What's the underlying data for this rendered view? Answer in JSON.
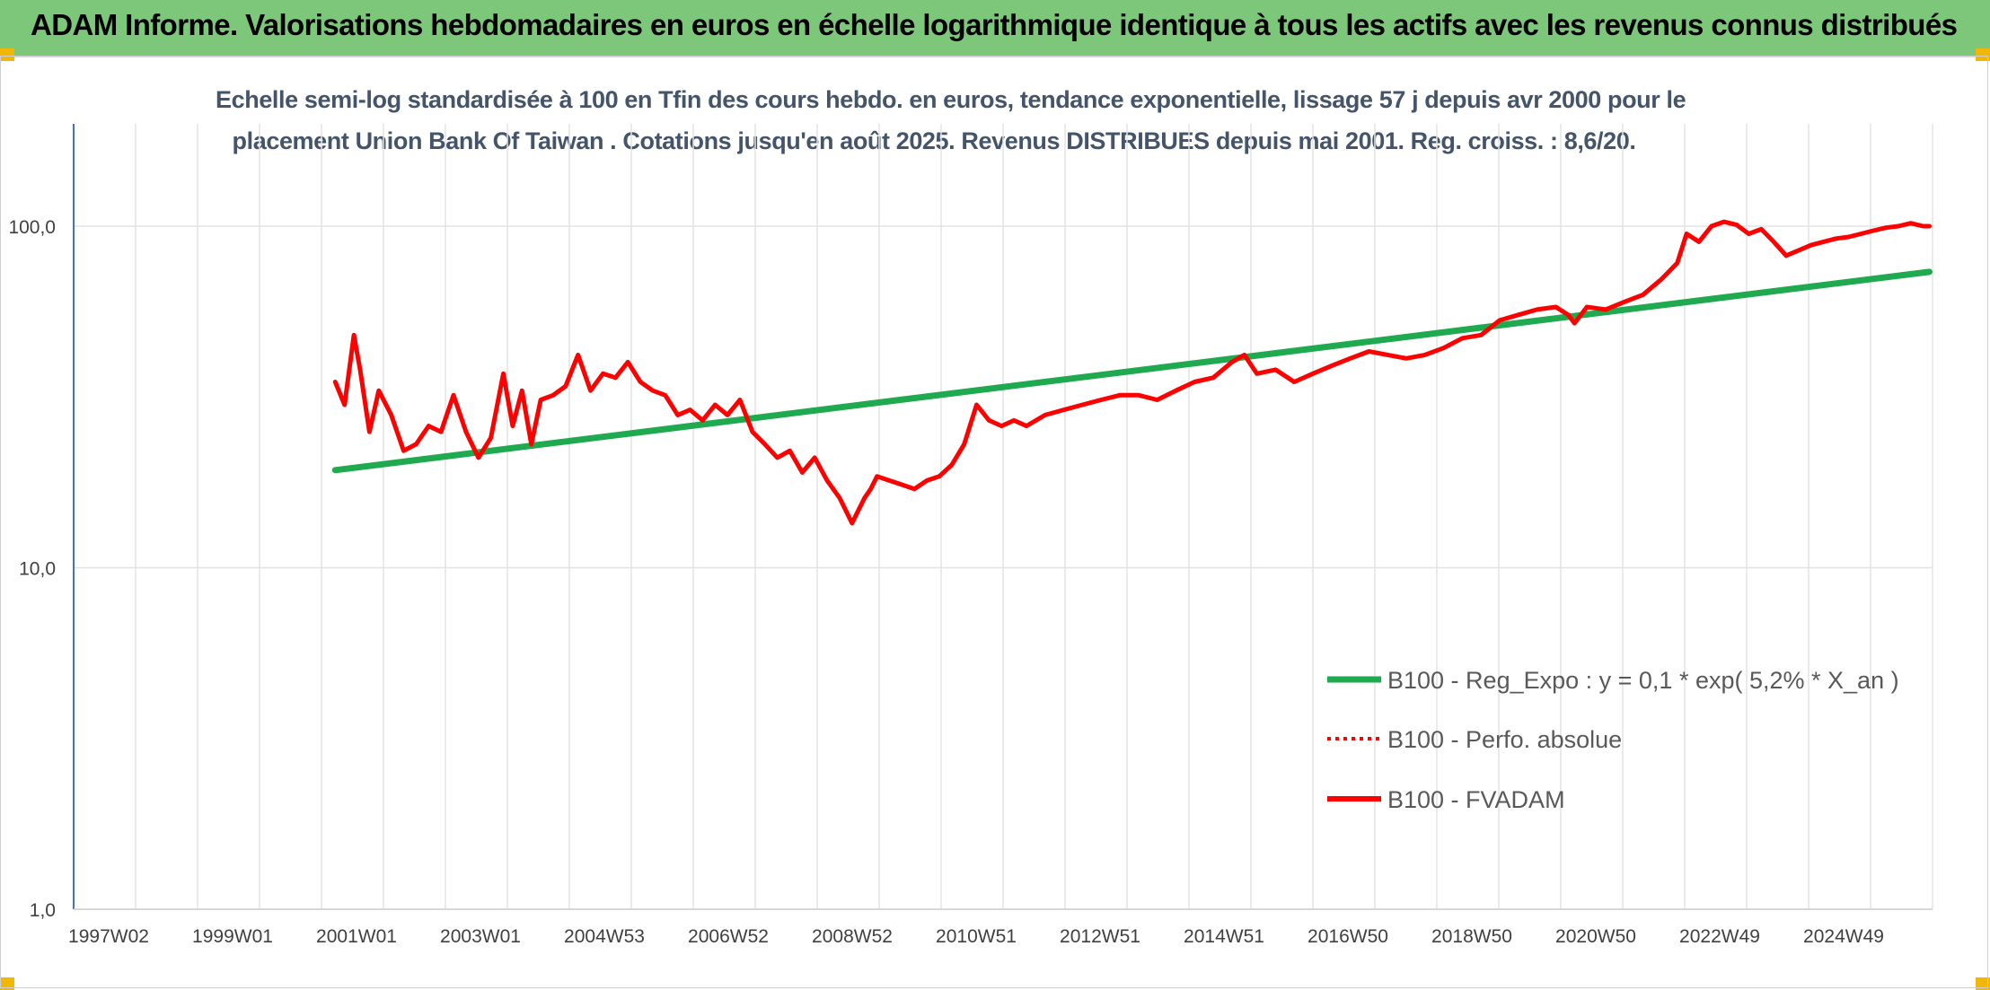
{
  "banner": {
    "title": "ADAM Informe. Valorisations hebdomadaires en euros en échelle logarithmique identique à tous les actifs avec les revenus connus distribués"
  },
  "colors": {
    "banner_bg": "#7dc77a",
    "accent_corner": "#f2b705",
    "regression": "#1faa4f",
    "fvadam": "#ff0000",
    "perf_absolue": "#ff0000",
    "grid": "#e3e3e3",
    "axis": "#4472c4"
  },
  "chart_data": {
    "type": "line",
    "title_line1": "Echelle semi-log standardisée à 100 en Tfin des cours hebdo. en euros, tendance exponentielle, lissage 57 j depuis avr 2000 pour le",
    "title_line2": "placement Union Bank Of Taiwan . Cotations jusqu'en août 2025. Revenus DISTRIBUES depuis mai 2001. Reg. croiss. : 8,6/20.",
    "y_scale": "log",
    "ylim": [
      1,
      100
    ],
    "y_ticks": [
      "1,0",
      "10,0",
      "100,0"
    ],
    "x_ticks": [
      "1997W02",
      "1999W01",
      "2001W01",
      "2003W01",
      "2004W53",
      "2006W52",
      "2008W52",
      "2010W51",
      "2012W51",
      "2014W51",
      "2016W50",
      "2018W50",
      "2020W50",
      "2022W49",
      "2024W49"
    ],
    "xlim": [
      1996.0,
      2025.85
    ],
    "grid": true,
    "legend_position": "center-right",
    "legend": [
      {
        "name": "B100 - Reg_Expo : y = 0,1 * exp( 5,2% *  X_an )",
        "style": "solid-green"
      },
      {
        "name": "B100 - Perfo. absolue",
        "style": "dotted-red"
      },
      {
        "name": "B100 - FVADAM",
        "style": "solid-red"
      }
    ],
    "series": [
      {
        "name": "B100 - Reg_Expo : y = 0,1 * exp( 5,2% *  X_an )",
        "x": [
          2000.2,
          2025.8
        ],
        "y": [
          19.3,
          73.5
        ]
      },
      {
        "name": "B100 - FVADAM",
        "x": [
          2000.2,
          2000.35,
          2000.5,
          2000.6,
          2000.75,
          2000.9,
          2001.1,
          2001.3,
          2001.5,
          2001.7,
          2001.9,
          2002.1,
          2002.3,
          2002.5,
          2002.7,
          2002.9,
          2003.05,
          2003.2,
          2003.35,
          2003.5,
          2003.7,
          2003.9,
          2004.1,
          2004.3,
          2004.5,
          2004.7,
          2004.9,
          2005.1,
          2005.3,
          2005.5,
          2005.7,
          2005.9,
          2006.1,
          2006.3,
          2006.5,
          2006.7,
          2006.9,
          2007.1,
          2007.3,
          2007.5,
          2007.7,
          2007.9,
          2008.1,
          2008.3,
          2008.5,
          2008.7,
          2008.8,
          2008.9,
          2009.1,
          2009.3,
          2009.5,
          2009.7,
          2009.9,
          2010.1,
          2010.3,
          2010.5,
          2010.7,
          2010.9,
          2011.1,
          2011.3,
          2011.6,
          2011.9,
          2012.2,
          2012.5,
          2012.8,
          2013.1,
          2013.4,
          2013.7,
          2014.0,
          2014.3,
          2014.6,
          2014.8,
          2015.0,
          2015.3,
          2015.6,
          2015.9,
          2016.2,
          2016.5,
          2016.8,
          2017.1,
          2017.4,
          2017.7,
          2018.0,
          2018.3,
          2018.6,
          2018.9,
          2019.2,
          2019.5,
          2019.8,
          2020.0,
          2020.1,
          2020.3,
          2020.6,
          2020.9,
          2021.2,
          2021.5,
          2021.75,
          2021.9,
          2022.1,
          2022.3,
          2022.5,
          2022.7,
          2022.9,
          2023.1,
          2023.3,
          2023.5,
          2023.7,
          2023.9,
          2024.1,
          2024.3,
          2024.5,
          2024.7,
          2024.9,
          2025.1,
          2025.3,
          2025.5,
          2025.7,
          2025.8
        ],
        "y": [
          35,
          30,
          48,
          38,
          25,
          33,
          28,
          22,
          23,
          26,
          25,
          32,
          25,
          21,
          24,
          37,
          26,
          33,
          23,
          31,
          32,
          34,
          42,
          33,
          37,
          36,
          40,
          35,
          33,
          32,
          28,
          29,
          27,
          30,
          28,
          31,
          25,
          23,
          21,
          22,
          19,
          21,
          18,
          16,
          13.5,
          16,
          17,
          18.5,
          18,
          17.5,
          17,
          18,
          18.5,
          20,
          23,
          30,
          27,
          26,
          27,
          26,
          28,
          29,
          30,
          31,
          32,
          32,
          31,
          33,
          35,
          36,
          40,
          42,
          37,
          38,
          35,
          37,
          39,
          41,
          43,
          42,
          41,
          42,
          44,
          47,
          48,
          53,
          55,
          57,
          58,
          55,
          52,
          58,
          57,
          60,
          63,
          70,
          78,
          95,
          90,
          100,
          103,
          101,
          95,
          98,
          90,
          82,
          85,
          88,
          90,
          92,
          93,
          95,
          97,
          99,
          100,
          102,
          100,
          100
        ]
      }
    ]
  }
}
